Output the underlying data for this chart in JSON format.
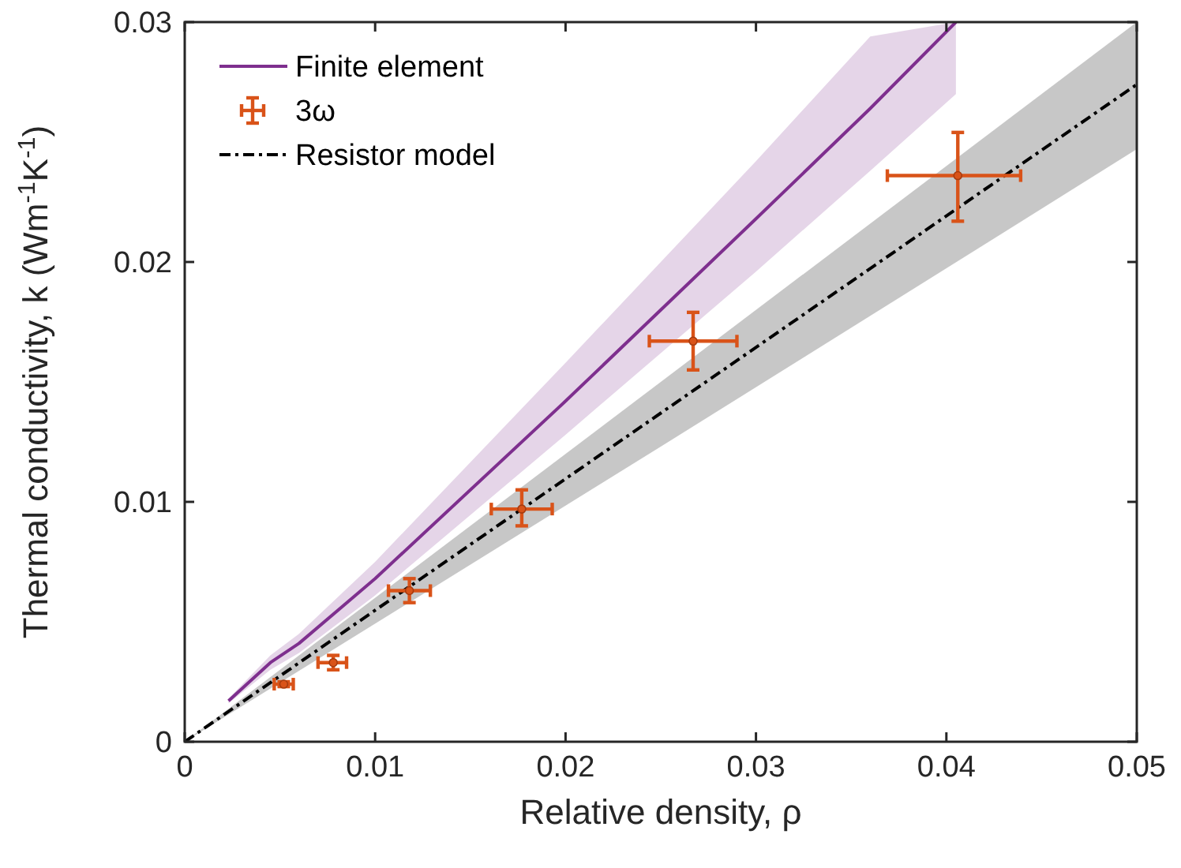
{
  "chart_data": {
    "type": "line",
    "xlabel": "Relative density, ρ",
    "ylabel": "Thermal conductivity, k (Wm$^{-1}$K$^{-1}$)",
    "xlim": [
      0,
      0.05
    ],
    "ylim": [
      0,
      0.03
    ],
    "xticks": [
      0,
      0.01,
      0.02,
      0.03,
      0.04,
      0.05
    ],
    "yticks": [
      0,
      0.01,
      0.02,
      0.03
    ],
    "grid": false,
    "legend": "top left",
    "marker": "none",
    "series": [
      {
        "name": "Finite element",
        "color": "#7e2f8e",
        "line_style": "solid",
        "x": [
          0.0023,
          0.0045,
          0.006,
          0.01,
          0.02,
          0.03,
          0.036,
          0.0405
        ],
        "values": [
          0.0017,
          0.0033,
          0.0041,
          0.0068,
          0.0142,
          0.0218,
          0.0264,
          0.03
        ],
        "lower": [
          0.0016,
          0.003,
          0.0037,
          0.0061,
          0.0128,
          0.0196,
          0.0238,
          0.027
        ],
        "upper": [
          0.0018,
          0.0036,
          0.0045,
          0.0075,
          0.0158,
          0.0242,
          0.0294,
          0.03
        ]
      },
      {
        "name": "3ω",
        "type": "scatter",
        "marker": "circle",
        "color": "#d95319",
        "x": [
          0.0052,
          0.0078,
          0.0118,
          0.0177,
          0.0267,
          0.0406
        ],
        "values": [
          0.0024,
          0.0033,
          0.0063,
          0.0097,
          0.0167,
          0.0236
        ],
        "xerrors": [
          [
            0.0047,
            0.0057
          ],
          [
            0.007,
            0.0085
          ],
          [
            0.0107,
            0.0129
          ],
          [
            0.0161,
            0.0193
          ],
          [
            0.0244,
            0.029
          ],
          [
            0.0369,
            0.0439
          ]
        ],
        "errors": [
          [
            0.0023,
            0.0025
          ],
          [
            0.003,
            0.0036
          ],
          [
            0.0058,
            0.0068
          ],
          [
            0.009,
            0.0105
          ],
          [
            0.0155,
            0.0179
          ],
          [
            0.0217,
            0.0254
          ]
        ]
      },
      {
        "name": "Resistor model",
        "color": "#000000",
        "line_style": "dashed",
        "x": [
          0,
          0.025,
          0.05
        ],
        "values": [
          0,
          0.0137,
          0.0274
        ],
        "lower": [
          0,
          0.0123,
          0.0247
        ],
        "upper": [
          0,
          0.015,
          0.03
        ]
      }
    ]
  }
}
